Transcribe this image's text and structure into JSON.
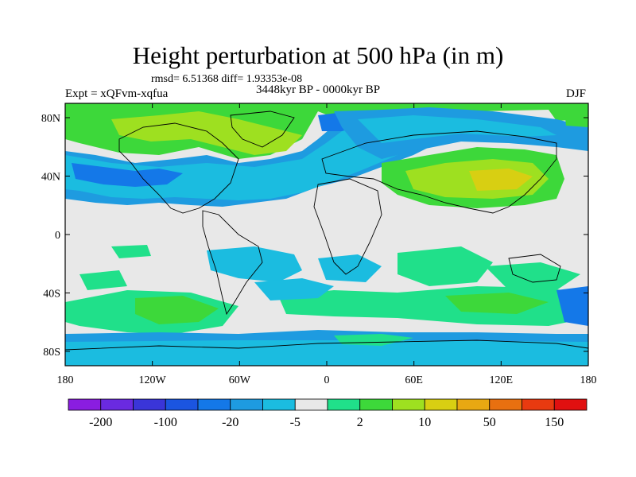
{
  "title": "Height perturbation at 500 hPa (in m)",
  "stats": "rmsd= 6.51368 diff= 1.93353e-08",
  "experiment": "Expt = xQFvm-xqfua",
  "period": "3448kyr BP - 0000kyr BP",
  "season": "DJF",
  "latitude_labels": [
    {
      "label": "80N",
      "value": 80
    },
    {
      "label": "40N",
      "value": 40
    },
    {
      "label": "0",
      "value": 0
    },
    {
      "label": "40S",
      "value": -40
    },
    {
      "label": "80S",
      "value": -80
    }
  ],
  "longitude_labels": [
    {
      "label": "180",
      "value": -180
    },
    {
      "label": "120W",
      "value": -120
    },
    {
      "label": "60W",
      "value": -60
    },
    {
      "label": "0",
      "value": 0
    },
    {
      "label": "60E",
      "value": 60
    },
    {
      "label": "120E",
      "value": 120
    },
    {
      "label": "180",
      "value": 180
    }
  ],
  "colorbar": {
    "colors": [
      "#8a1de0",
      "#6a2ae0",
      "#3a35d8",
      "#1b55e0",
      "#1478e8",
      "#1e9be0",
      "#1bbce0",
      "#e8e8e8",
      "#20e08a",
      "#3dd83a",
      "#9ee020",
      "#d8cf12",
      "#e8a812",
      "#e87010",
      "#e83a10",
      "#e01010"
    ],
    "labels": [
      {
        "text": "-200",
        "boundary": 1
      },
      {
        "text": "-100",
        "boundary": 3
      },
      {
        "text": "-20",
        "boundary": 5
      },
      {
        "text": "-5",
        "boundary": 7
      },
      {
        "text": "2",
        "boundary": 9
      },
      {
        "text": "10",
        "boundary": 11
      },
      {
        "text": "50",
        "boundary": 13
      },
      {
        "text": "150",
        "boundary": 15
      }
    ]
  }
}
